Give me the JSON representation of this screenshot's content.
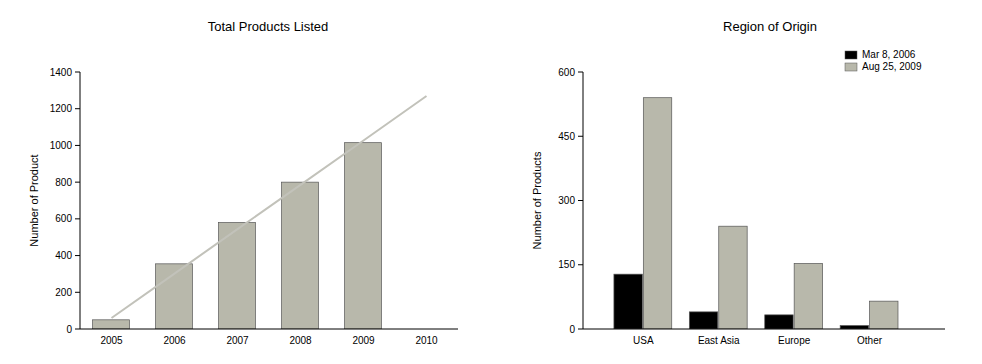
{
  "chart_data": [
    {
      "type": "bar",
      "title": "Total Products Listed",
      "y_label": "Number of Product",
      "categories": [
        "2005",
        "2006",
        "2007",
        "2008",
        "2009",
        "2010"
      ],
      "series": [
        {
          "type": "bar",
          "color": "#b8b8ab",
          "values": [
            50,
            355,
            580,
            800,
            1015,
            null
          ]
        },
        {
          "type": "line",
          "color": "#c2c2ba",
          "values": [
            60,
            302,
            544,
            785,
            1027,
            1269
          ]
        }
      ],
      "ylim": [
        0,
        1400
      ],
      "yticks": [
        0,
        200,
        400,
        600,
        800,
        1000,
        1200,
        1400
      ]
    },
    {
      "type": "bar",
      "title": "Region of Origin",
      "y_label": "Number of Products",
      "categories": [
        "USA",
        "East Asia",
        "Europe",
        "Other"
      ],
      "series": [
        {
          "name": "Mar 8, 2006",
          "color": "#000000",
          "values": [
            128,
            40,
            33,
            8
          ]
        },
        {
          "name": "Aug 25, 2009",
          "color": "#b8b8ab",
          "values": [
            540,
            240,
            153,
            65
          ]
        }
      ],
      "ylim": [
        0,
        600
      ],
      "yticks": [
        0,
        150,
        300,
        450,
        600
      ],
      "legend": "upper-right"
    }
  ]
}
